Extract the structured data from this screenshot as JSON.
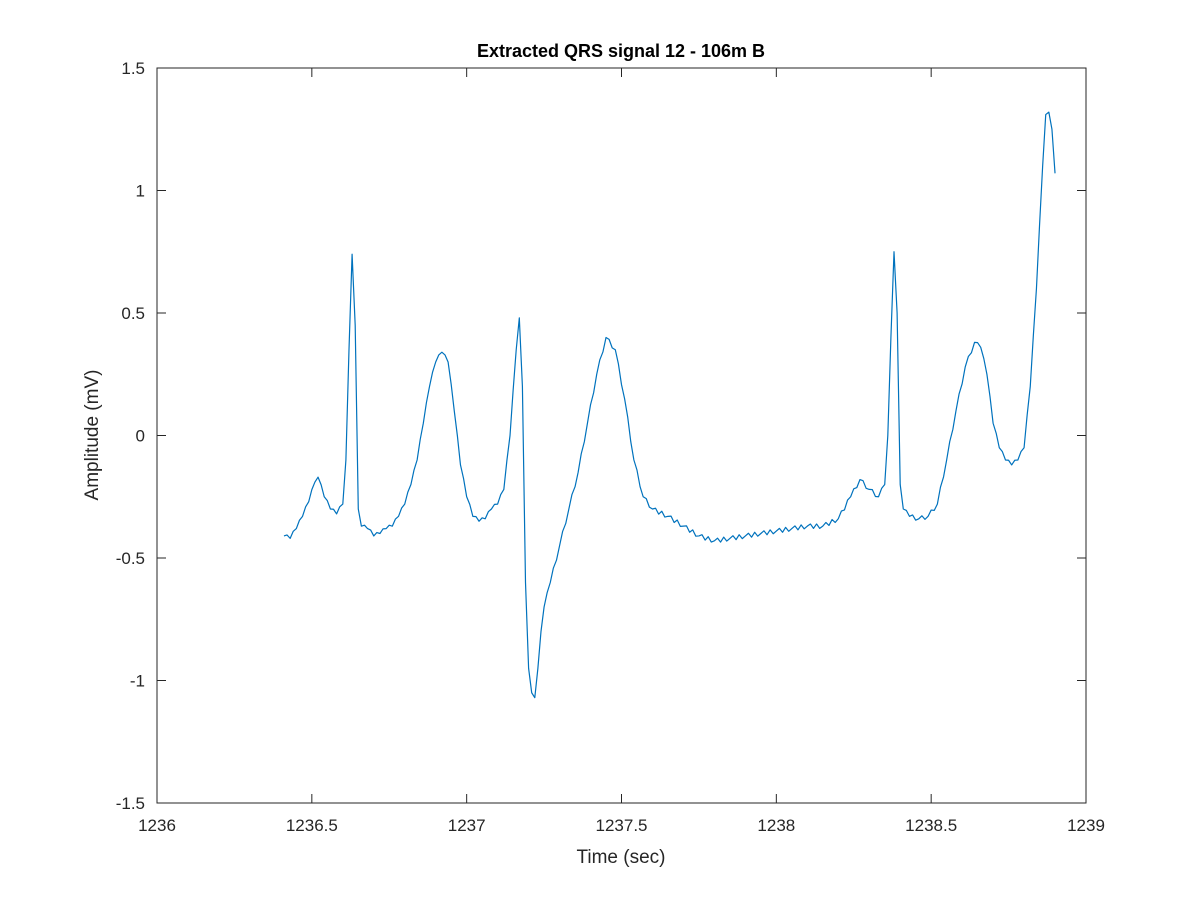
{
  "chart_data": {
    "type": "line",
    "title": "Extracted QRS signal 12 - 106m B",
    "xlabel": "Time (sec)",
    "ylabel": "Amplitude (mV)",
    "xlim": [
      1236,
      1239
    ],
    "ylim": [
      -1.5,
      1.5
    ],
    "xticks": [
      1236,
      1236.5,
      1237,
      1237.5,
      1238,
      1238.5,
      1239
    ],
    "xtick_labels": [
      "1236",
      "1236.5",
      "1237",
      "1237.5",
      "1238",
      "1238.5",
      "1239"
    ],
    "yticks": [
      -1.5,
      -1,
      -0.5,
      0,
      0.5,
      1,
      1.5
    ],
    "ytick_labels": [
      "-1.5",
      "-1",
      "-0.5",
      "0",
      "0.5",
      "1",
      "1.5"
    ],
    "grid": false,
    "line_color": "#0072BD",
    "series": [
      {
        "x": [
          1236.41,
          1236.43,
          1236.45,
          1236.47,
          1236.49,
          1236.51,
          1236.52,
          1236.54,
          1236.56,
          1236.58,
          1236.6,
          1236.61,
          1236.62,
          1236.63,
          1236.64,
          1236.65,
          1236.66,
          1236.68,
          1236.7,
          1236.72,
          1236.74,
          1236.76,
          1236.78,
          1236.8,
          1236.82,
          1236.84,
          1236.86,
          1236.88,
          1236.9,
          1236.92,
          1236.94,
          1236.96,
          1236.98,
          1237.0,
          1237.02,
          1237.04,
          1237.06,
          1237.08,
          1237.1,
          1237.12,
          1237.14,
          1237.16,
          1237.17,
          1237.18,
          1237.19,
          1237.2,
          1237.21,
          1237.22,
          1237.23,
          1237.24,
          1237.25,
          1237.27,
          1237.3,
          1237.33,
          1237.36,
          1237.39,
          1237.42,
          1237.45,
          1237.48,
          1237.51,
          1237.54,
          1237.57,
          1237.6,
          1237.65,
          1237.7,
          1237.75,
          1237.8,
          1237.85,
          1237.9,
          1237.95,
          1238.0,
          1238.05,
          1238.1,
          1238.15,
          1238.2,
          1238.24,
          1238.27,
          1238.3,
          1238.33,
          1238.35,
          1238.36,
          1238.37,
          1238.38,
          1238.39,
          1238.4,
          1238.41,
          1238.43,
          1238.46,
          1238.49,
          1238.52,
          1238.55,
          1238.58,
          1238.61,
          1238.64,
          1238.66,
          1238.68,
          1238.7,
          1238.72,
          1238.74,
          1238.76,
          1238.78,
          1238.8,
          1238.82,
          1238.84,
          1238.86,
          1238.87,
          1238.88,
          1238.89,
          1238.9
        ],
        "y": [
          -0.41,
          -0.42,
          -0.38,
          -0.33,
          -0.27,
          -0.19,
          -0.17,
          -0.25,
          -0.3,
          -0.32,
          -0.28,
          -0.1,
          0.35,
          0.74,
          0.45,
          -0.3,
          -0.37,
          -0.38,
          -0.41,
          -0.4,
          -0.38,
          -0.37,
          -0.33,
          -0.28,
          -0.2,
          -0.1,
          0.05,
          0.2,
          0.3,
          0.34,
          0.3,
          0.1,
          -0.12,
          -0.25,
          -0.33,
          -0.35,
          -0.34,
          -0.3,
          -0.28,
          -0.22,
          0.0,
          0.35,
          0.48,
          0.2,
          -0.6,
          -0.95,
          -1.05,
          -1.07,
          -0.95,
          -0.8,
          -0.7,
          -0.6,
          -0.45,
          -0.3,
          -0.15,
          0.05,
          0.25,
          0.4,
          0.35,
          0.15,
          -0.1,
          -0.25,
          -0.3,
          -0.33,
          -0.37,
          -0.41,
          -0.43,
          -0.42,
          -0.41,
          -0.4,
          -0.39,
          -0.38,
          -0.37,
          -0.37,
          -0.34,
          -0.25,
          -0.18,
          -0.22,
          -0.25,
          -0.2,
          0.0,
          0.4,
          0.75,
          0.5,
          -0.2,
          -0.3,
          -0.33,
          -0.34,
          -0.33,
          -0.28,
          -0.1,
          0.1,
          0.28,
          0.38,
          0.36,
          0.25,
          0.05,
          -0.05,
          -0.1,
          -0.12,
          -0.1,
          -0.05,
          0.2,
          0.6,
          1.1,
          1.31,
          1.32,
          1.25,
          1.07
        ]
      }
    ]
  }
}
